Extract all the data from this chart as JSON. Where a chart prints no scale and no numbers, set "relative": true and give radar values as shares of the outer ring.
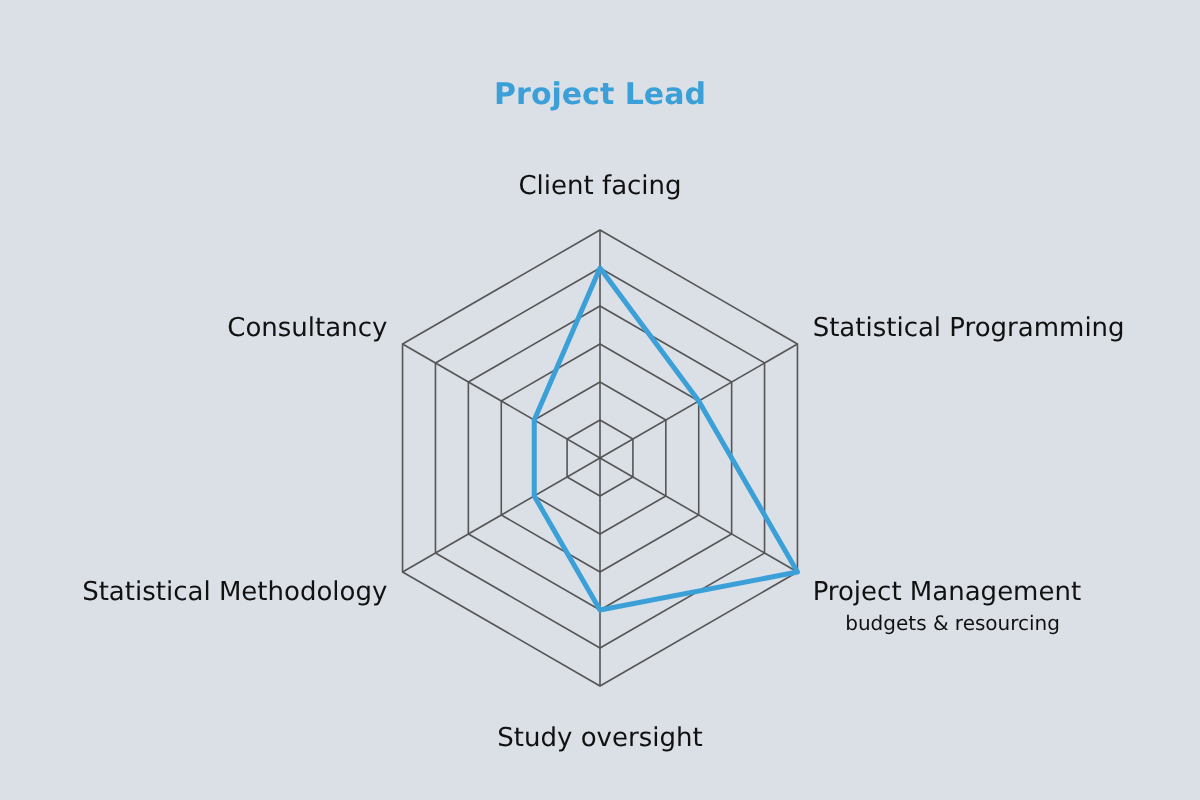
{
  "chart_data": {
    "type": "radar",
    "title": "Project Lead",
    "relative": true,
    "grid": true,
    "categories": [
      "Client facing",
      "Statistical Programming",
      "Project Management\nbudgets & resourcing",
      "Study oversight",
      "Statistical Methodology",
      "Consultancy"
    ],
    "series": [
      {
        "color": "#3b9fd8",
        "values": [
          0.833,
          0.5,
          1,
          0.667,
          0.333,
          0.333
        ]
      }
    ]
  }
}
